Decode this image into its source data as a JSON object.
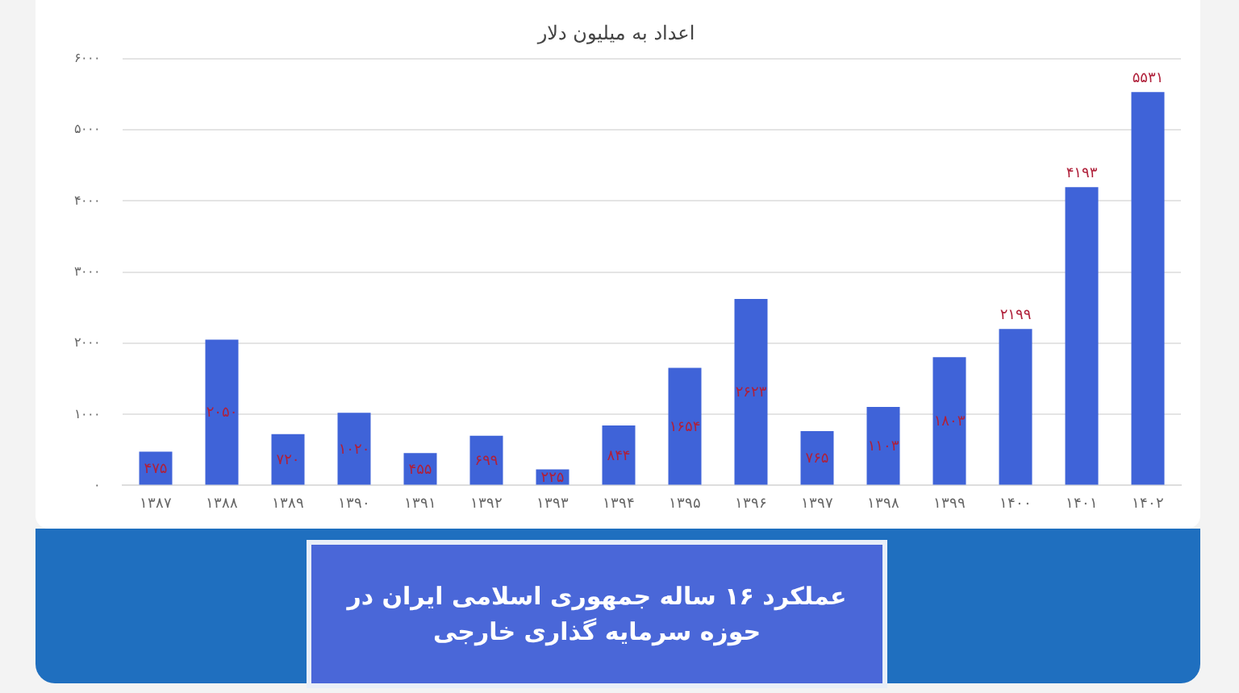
{
  "chart_data": {
    "type": "bar",
    "title": "اعداد به میلیون دلار",
    "categories": [
      "۱۳۸۷",
      "۱۳۸۸",
      "۱۳۸۹",
      "۱۳۹۰",
      "۱۳۹۱",
      "۱۳۹۲",
      "۱۳۹۳",
      "۱۳۹۴",
      "۱۳۹۵",
      "۱۳۹۶",
      "۱۳۹۷",
      "۱۳۹۸",
      "۱۳۹۹",
      "۱۴۰۰",
      "۱۴۰۱",
      "۱۴۰۲"
    ],
    "values": [
      475,
      2050,
      720,
      1020,
      455,
      699,
      225,
      844,
      1654,
      2623,
      765,
      1103,
      1803,
      2199,
      4193,
      5531
    ],
    "value_labels": [
      "۴۷۵",
      "۲۰۵۰",
      "۷۲۰",
      "۱۰۲۰",
      "۴۵۵",
      "۶۹۹",
      "۲۲۵",
      "۸۴۴",
      "۱۶۵۴",
      "۲۶۲۳",
      "۷۶۵",
      "۱۱۰۳",
      "۱۸۰۳",
      "۲۱۹۹",
      "۴۱۹۳",
      "۵۵۳۱"
    ],
    "color": "#3f63d8",
    "ylim": [
      0,
      6000
    ],
    "yticks": [
      {
        "value": 0,
        "label": "۰"
      },
      {
        "value": 1000,
        "label": "۱۰۰۰"
      },
      {
        "value": 2000,
        "label": "۲۰۰۰"
      },
      {
        "value": 3000,
        "label": "۳۰۰۰"
      },
      {
        "value": 4000,
        "label": "۴۰۰۰"
      },
      {
        "value": 5000,
        "label": "۵۰۰۰"
      },
      {
        "value": 6000,
        "label": "۶۰۰۰"
      }
    ],
    "grid": "y",
    "legend": false,
    "annotations": [
      "عملکرد ۱۶ ساله جمهوری اسلامی ایران در حوزه سرمایه گذاری خارجی"
    ]
  }
}
